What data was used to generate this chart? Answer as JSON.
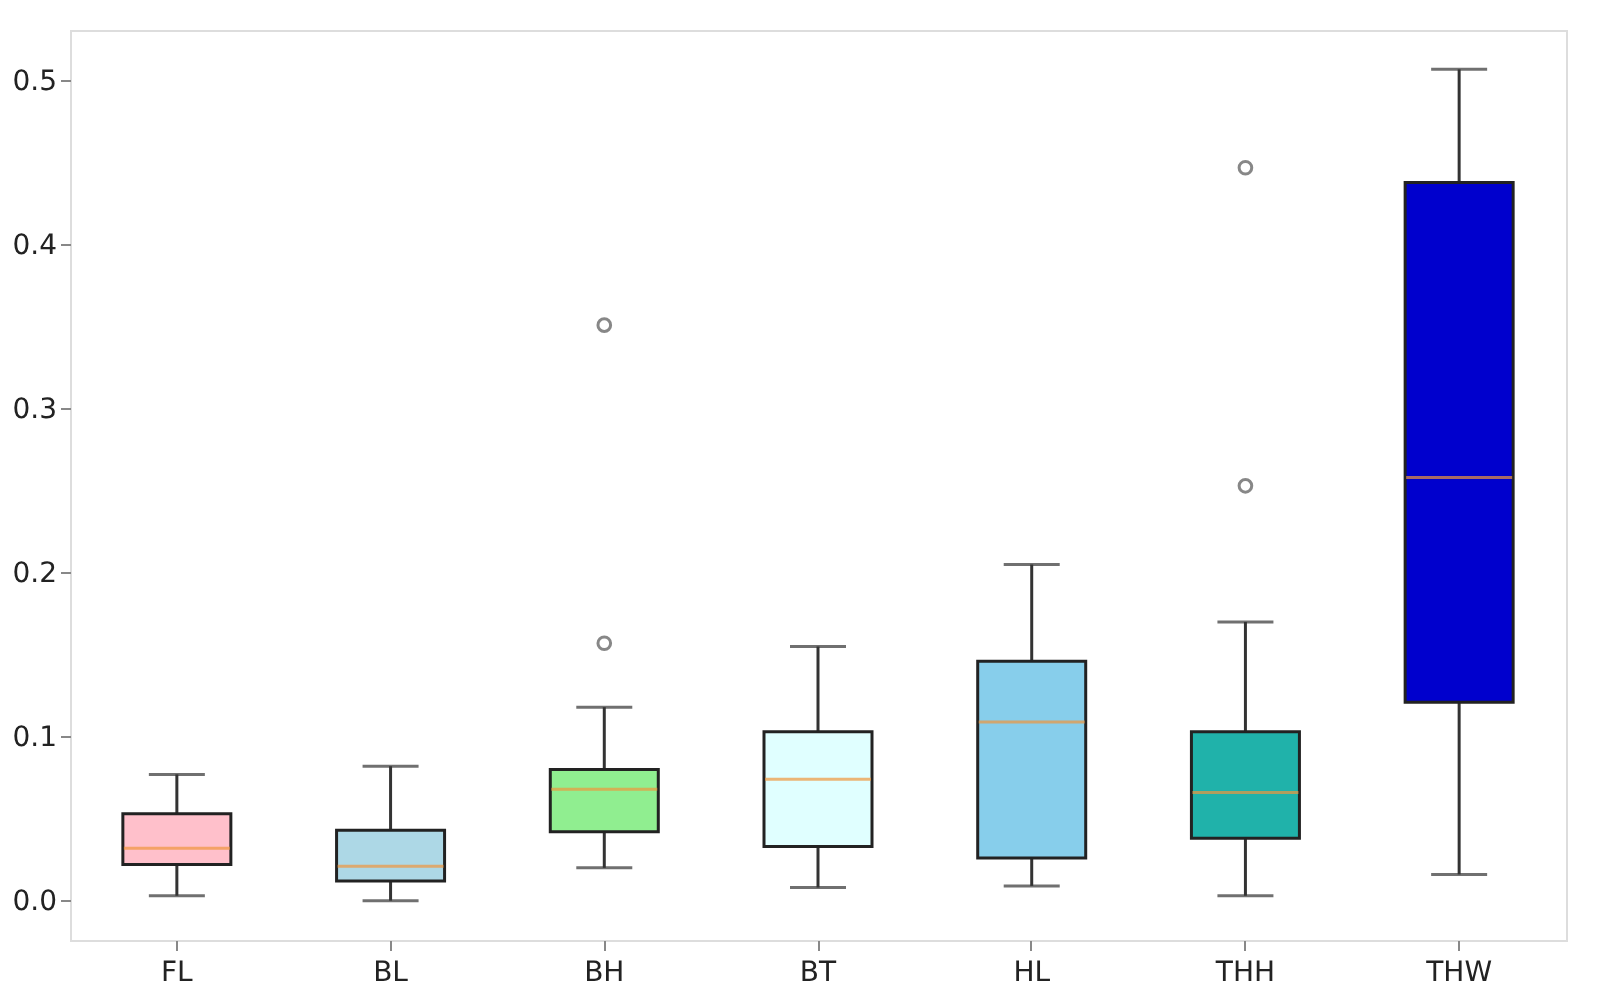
{
  "chart_data": {
    "type": "box",
    "categories": [
      "FL",
      "BL",
      "BH",
      "BT",
      "HL",
      "THH",
      "THW"
    ],
    "colors": [
      "#ffc0cb",
      "#add8e6",
      "#90ee90",
      "#e0ffff",
      "#87ceeb",
      "#20b2aa",
      "#0000cd"
    ],
    "boxes": [
      {
        "low": 0.003,
        "q1": 0.022,
        "median": 0.032,
        "q3": 0.053,
        "high": 0.077
      },
      {
        "low": 0.0,
        "q1": 0.012,
        "median": 0.021,
        "q3": 0.043,
        "high": 0.082
      },
      {
        "low": 0.02,
        "q1": 0.042,
        "median": 0.068,
        "q3": 0.08,
        "high": 0.118,
        "outliers": [
          0.157,
          0.351
        ]
      },
      {
        "low": 0.008,
        "q1": 0.033,
        "median": 0.074,
        "q3": 0.103,
        "high": 0.155
      },
      {
        "low": 0.009,
        "q1": 0.026,
        "median": 0.109,
        "q3": 0.146,
        "high": 0.205
      },
      {
        "low": 0.003,
        "q1": 0.038,
        "median": 0.066,
        "q3": 0.103,
        "high": 0.17,
        "outliers": [
          0.253,
          0.447
        ]
      },
      {
        "low": 0.016,
        "q1": 0.121,
        "median": 0.258,
        "q3": 0.438,
        "high": 0.507
      }
    ],
    "ylim": [
      -0.024,
      0.531
    ],
    "yticks": [
      {
        "value": 0,
        "label": "0.0"
      },
      0.1,
      0.2,
      0.3,
      0.4,
      0.5
    ],
    "grid": false
  }
}
